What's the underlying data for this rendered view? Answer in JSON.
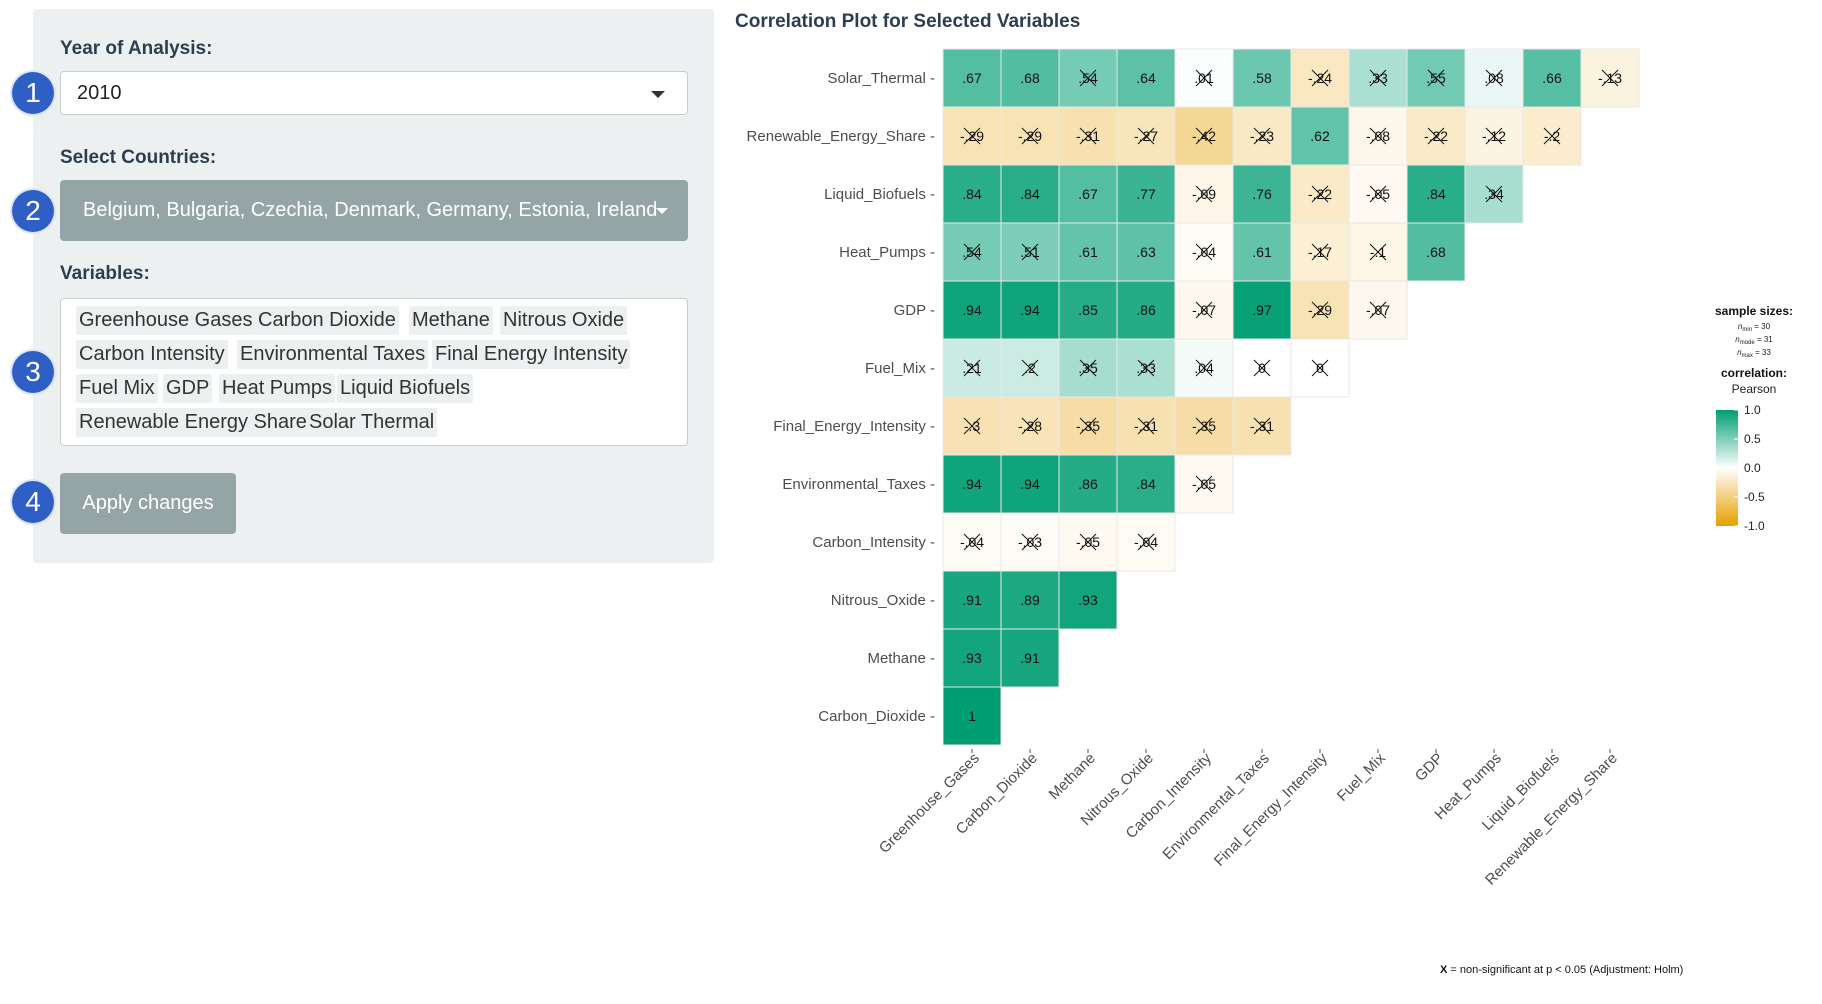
{
  "sidebar": {
    "year_label": "Year of Analysis:",
    "year_value": "2010",
    "countries_label": "Select Countries:",
    "countries_value": "Belgium, Bulgaria, Czechia, Denmark, Germany, Estonia, Ireland",
    "variables_label": "Variables:",
    "variable_chips": [
      "Greenhouse Gases",
      "Carbon Dioxide",
      "Methane",
      "Nitrous Oxide",
      "Carbon Intensity",
      "Environmental Taxes",
      "Final Energy Intensity",
      "Fuel Mix",
      "GDP",
      "Heat Pumps",
      "Liquid Biofuels",
      "Renewable Energy Share",
      "Solar Thermal"
    ],
    "apply_label": "Apply changes"
  },
  "badges": [
    "1",
    "2",
    "3",
    "4"
  ],
  "main": {
    "title": "Correlation Plot for Selected Variables"
  },
  "chart_data": {
    "type": "heatmap",
    "x_labels": [
      "Greenhouse_Gases",
      "Carbon_Dioxide",
      "Methane",
      "Nitrous_Oxide",
      "Carbon_Intensity",
      "Environmental_Taxes",
      "Final_Energy_Intensity",
      "Fuel_Mix",
      "GDP",
      "Heat_Pumps",
      "Liquid_Biofuels",
      "Renewable_Energy_Share"
    ],
    "rows": [
      {
        "label": "Solar_Thermal",
        "values": [
          0.67,
          0.68,
          0.54,
          0.64,
          0.01,
          0.58,
          -0.24,
          0.33,
          0.55,
          0.08,
          0.66,
          -0.13
        ],
        "nonsig": [
          false,
          false,
          true,
          false,
          true,
          false,
          true,
          true,
          true,
          true,
          false,
          true
        ]
      },
      {
        "label": "Renewable_Energy_Share",
        "values": [
          -0.29,
          -0.29,
          -0.31,
          -0.27,
          -0.42,
          -0.23,
          0.62,
          -0.08,
          -0.22,
          -0.12,
          -0.2
        ],
        "nonsig": [
          true,
          true,
          true,
          true,
          true,
          true,
          false,
          true,
          true,
          true,
          true
        ]
      },
      {
        "label": "Liquid_Biofuels",
        "values": [
          0.84,
          0.84,
          0.67,
          0.77,
          -0.09,
          0.76,
          -0.22,
          -0.05,
          0.84,
          0.34
        ],
        "nonsig": [
          false,
          false,
          false,
          false,
          true,
          false,
          true,
          true,
          false,
          true
        ]
      },
      {
        "label": "Heat_Pumps",
        "values": [
          0.54,
          0.51,
          0.61,
          0.63,
          -0.04,
          0.61,
          -0.17,
          -0.1,
          0.68
        ],
        "nonsig": [
          true,
          true,
          false,
          false,
          true,
          false,
          true,
          true,
          false
        ]
      },
      {
        "label": "GDP",
        "values": [
          0.94,
          0.94,
          0.85,
          0.86,
          -0.07,
          0.97,
          -0.29,
          -0.07
        ],
        "nonsig": [
          false,
          false,
          false,
          false,
          true,
          false,
          true,
          true
        ]
      },
      {
        "label": "Fuel_Mix",
        "values": [
          0.21,
          0.2,
          0.35,
          0.33,
          0.04,
          0,
          0
        ],
        "nonsig": [
          true,
          true,
          true,
          true,
          true,
          true,
          true
        ]
      },
      {
        "label": "Final_Energy_Intensity",
        "values": [
          -0.3,
          -0.28,
          -0.35,
          -0.31,
          -0.35,
          -0.31
        ],
        "nonsig": [
          true,
          true,
          true,
          true,
          true,
          true
        ]
      },
      {
        "label": "Environmental_Taxes",
        "values": [
          0.94,
          0.94,
          0.86,
          0.84,
          -0.05
        ],
        "nonsig": [
          false,
          false,
          false,
          false,
          true
        ]
      },
      {
        "label": "Carbon_Intensity",
        "values": [
          -0.04,
          -0.03,
          -0.05,
          -0.04
        ],
        "nonsig": [
          true,
          true,
          true,
          true
        ]
      },
      {
        "label": "Nitrous_Oxide",
        "values": [
          0.91,
          0.89,
          0.93
        ],
        "nonsig": [
          false,
          false,
          false
        ]
      },
      {
        "label": "Methane",
        "values": [
          0.93,
          0.91
        ],
        "nonsig": [
          false,
          false
        ]
      },
      {
        "label": "Carbon_Dioxide",
        "values": [
          1
        ],
        "nonsig": [
          false
        ]
      }
    ],
    "legend": {
      "sample_sizes_title": "sample sizes:",
      "n_min": "n",
      "n_min_sub": "min",
      "n_min_val": " = 30",
      "n_mode": "n",
      "n_mode_sub": "mode",
      "n_mode_val": " = 31",
      "n_max": "n",
      "n_max_sub": "max",
      "n_max_val": " = 33",
      "corr_title": "correlation:",
      "corr_type": "Pearson",
      "ticks": [
        "1.0",
        "0.5",
        "0.0",
        "-0.5",
        "-1.0"
      ],
      "colors": {
        "high": "#009e73",
        "mid": "#ffffff",
        "low": "#e69f00"
      }
    },
    "footnote_x": "X",
    "footnote": " = non-significant at p < 0.05 (Adjustment: Holm)"
  }
}
